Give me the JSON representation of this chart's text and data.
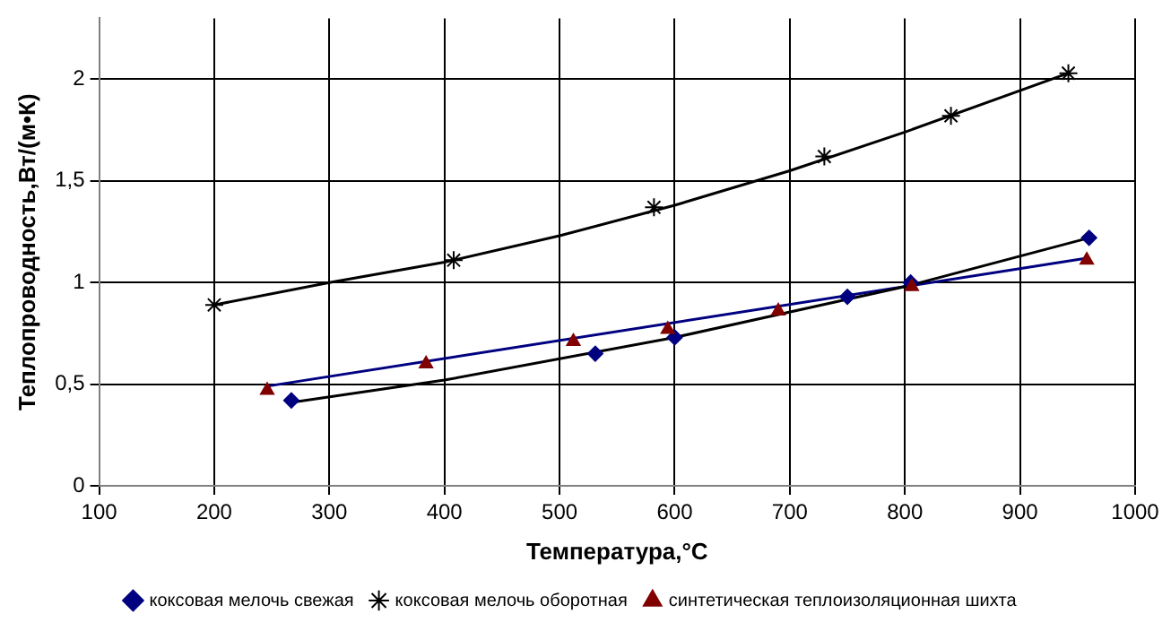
{
  "chart_data": {
    "type": "scatter",
    "xlabel": "Температура,°C",
    "ylabel": "Теплопроводность,Вт/(м•К)",
    "xlim": [
      100,
      1000
    ],
    "xticks": [
      100,
      200,
      300,
      400,
      500,
      600,
      700,
      800,
      900,
      1000
    ],
    "ylim": [
      0,
      2.3
    ],
    "yticks": [
      0,
      {
        "value": 0.5,
        "label": "0,5"
      },
      1,
      {
        "value": 1.5,
        "label": "1,5"
      },
      2
    ],
    "grid": true,
    "legend": "bottom",
    "series": [
      {
        "name": "коксовая мелочь свежая",
        "color": "#000080",
        "marker": "diamond",
        "x": [
          267,
          531,
          600,
          750,
          805,
          960
        ],
        "values": [
          0.42,
          0.65,
          0.73,
          0.93,
          1.0,
          1.22
        ]
      },
      {
        "name": "коксовая мелочь оборотная",
        "color": "#000000",
        "marker": "cross",
        "x": [
          200,
          408,
          582,
          730,
          840,
          942
        ],
        "values": [
          0.89,
          1.11,
          1.37,
          1.62,
          1.82,
          2.03
        ]
      },
      {
        "name": "синтетическая теплоизоляционная шихта",
        "color": "#800000",
        "marker": "triangle",
        "x": [
          246,
          384,
          512,
          594,
          690,
          806,
          958
        ],
        "values": [
          0.47,
          0.6,
          0.71,
          0.77,
          0.86,
          0.98,
          1.11
        ]
      },
      {
        "type": "line",
        "color": "#000000",
        "marker": "none",
        "x": [
          267,
          400,
          600,
          800,
          960
        ],
        "values": [
          0.41,
          0.52,
          0.73,
          0.98,
          1.22
        ]
      },
      {
        "type": "line",
        "color": "#000000",
        "marker": "none",
        "x": [
          200,
          300,
          400,
          500,
          600,
          700,
          800,
          942
        ],
        "values": [
          0.89,
          1.0,
          1.1,
          1.23,
          1.38,
          1.55,
          1.74,
          2.03
        ]
      },
      {
        "type": "line",
        "color": "#000080",
        "marker": "none",
        "x": [
          246,
          958
        ],
        "values": [
          0.49,
          1.12
        ]
      }
    ]
  }
}
